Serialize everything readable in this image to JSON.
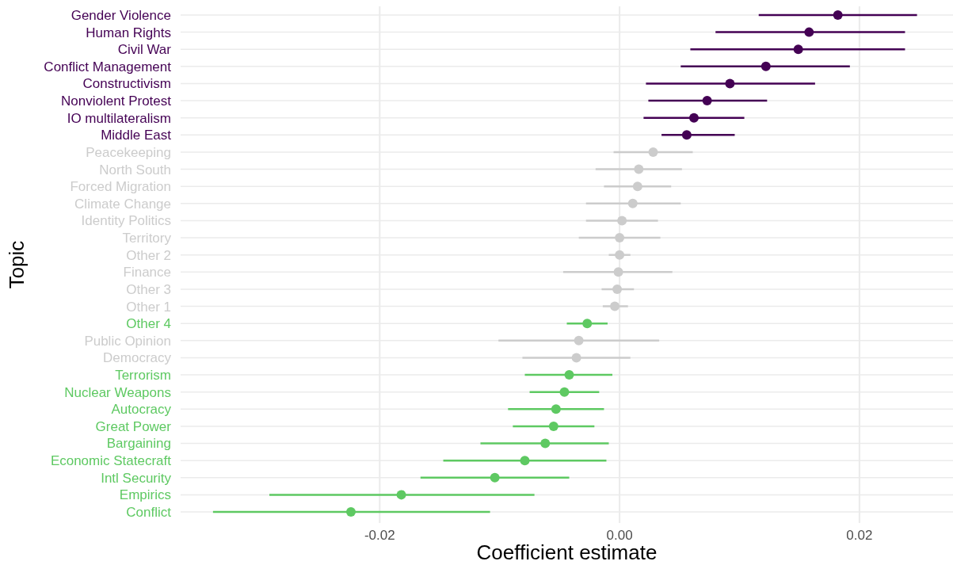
{
  "chart_data": {
    "type": "scatter",
    "orientation": "horizontal",
    "xlabel": "Coefficient estimate",
    "ylabel": "Topic",
    "categories": [
      "Gender Violence",
      "Human Rights",
      "Civil War",
      "Conflict Management",
      "Constructivism",
      "Nonviolent Protest",
      "IO multilateralism",
      "Middle East",
      "Peacekeeping",
      "North South",
      "Forced Migration",
      "Climate Change",
      "Identity Politics",
      "Territory",
      "Other 2",
      "Finance",
      "Other 3",
      "Other 1",
      "Other 4",
      "Public Opinion",
      "Democracy",
      "Terrorism",
      "Nuclear Weapons",
      "Autocracy",
      "Great Power",
      "Bargaining",
      "Economic Statecraft",
      "Intl Security",
      "Empirics",
      "Conflict"
    ],
    "xlim": [
      -0.0366,
      0.0278
    ],
    "xticks": [
      -0.02,
      {
        "value": 0,
        "label": "0.00"
      },
      0.02
    ],
    "grid": true,
    "marker": "circle",
    "series": [
      {
        "color": "#440154",
        "values": [
          0.0182,
          0.0158,
          0.0149,
          0.0122,
          0.0092,
          0.0073,
          0.0062,
          0.0056,
          null,
          null,
          null,
          null,
          null,
          null,
          null,
          null,
          null,
          null,
          null,
          null,
          null,
          null,
          null,
          null,
          null,
          null,
          null,
          null,
          null,
          null
        ],
        "errors": [
          [
            0.0116,
            0.0248
          ],
          [
            0.008,
            0.0238
          ],
          [
            0.0059,
            0.0238
          ],
          [
            0.0051,
            0.0192
          ],
          [
            0.0022,
            0.0163
          ],
          [
            0.0024,
            0.0123
          ],
          [
            0.002,
            0.0104
          ],
          [
            0.0035,
            0.0096
          ],
          null,
          null,
          null,
          null,
          null,
          null,
          null,
          null,
          null,
          null,
          null,
          null,
          null,
          null,
          null,
          null,
          null,
          null,
          null,
          null,
          null,
          null
        ]
      },
      {
        "color": "#cccccc",
        "values": [
          null,
          null,
          null,
          null,
          null,
          null,
          null,
          null,
          0.0028,
          0.0016,
          0.0015,
          0.0011,
          0.0002,
          0,
          0,
          -0.0001,
          -0.0002,
          -0.0004,
          null,
          -0.0034,
          -0.0036,
          null,
          null,
          null,
          null,
          null,
          null,
          null,
          null,
          null
        ],
        "errors": [
          null,
          null,
          null,
          null,
          null,
          null,
          null,
          null,
          [
            -0.0005,
            0.0061
          ],
          [
            -0.002,
            0.0052
          ],
          [
            -0.0013,
            0.0043
          ],
          [
            -0.0028,
            0.0051
          ],
          [
            -0.0028,
            0.0032
          ],
          [
            -0.0034,
            0.0034
          ],
          [
            -0.0009,
            0.0009
          ],
          [
            -0.0047,
            0.0044
          ],
          [
            -0.0015,
            0.0012
          ],
          [
            -0.0014,
            0.0007
          ],
          null,
          [
            -0.0101,
            0.0033
          ],
          [
            -0.0081,
            0.0009
          ],
          null,
          null,
          null,
          null,
          null,
          null,
          null,
          null,
          null
        ]
      },
      {
        "color": "#5ec962",
        "values": [
          null,
          null,
          null,
          null,
          null,
          null,
          null,
          null,
          null,
          null,
          null,
          null,
          null,
          null,
          null,
          null,
          null,
          null,
          -0.0027,
          null,
          null,
          -0.0042,
          -0.0046,
          -0.0053,
          -0.0055,
          -0.0062,
          -0.0079,
          -0.0104,
          -0.0182,
          -0.0224
        ],
        "errors": [
          null,
          null,
          null,
          null,
          null,
          null,
          null,
          null,
          null,
          null,
          null,
          null,
          null,
          null,
          null,
          null,
          null,
          null,
          [
            -0.0044,
            -0.001
          ],
          null,
          null,
          [
            -0.0079,
            -0.0006
          ],
          [
            -0.0075,
            -0.0017
          ],
          [
            -0.0093,
            -0.0013
          ],
          [
            -0.0089,
            -0.0021
          ],
          [
            -0.0116,
            -0.0009
          ],
          [
            -0.0147,
            -0.0011
          ],
          [
            -0.0166,
            -0.0042
          ],
          [
            -0.0292,
            -0.0071
          ],
          [
            -0.0339,
            -0.0108
          ]
        ]
      }
    ]
  }
}
